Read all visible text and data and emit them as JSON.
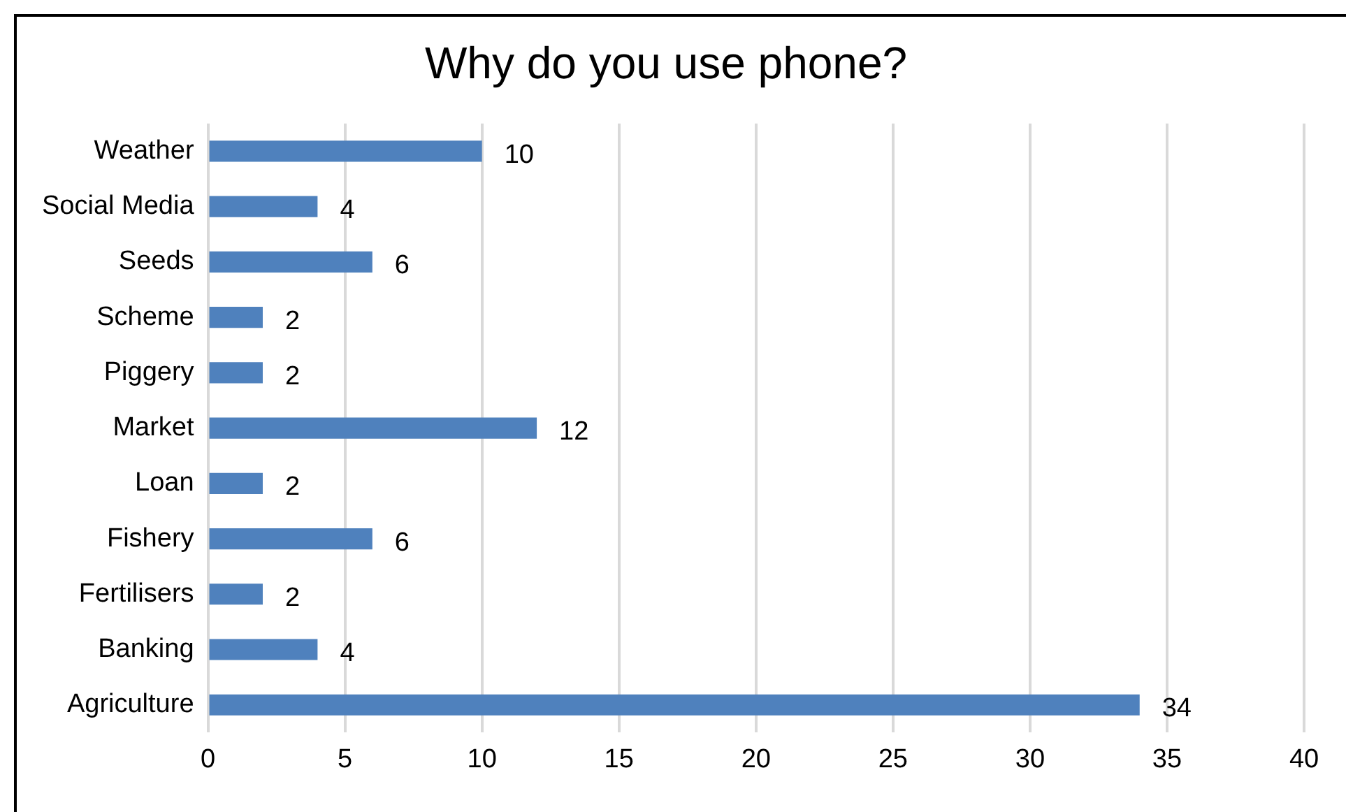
{
  "chart_data": {
    "type": "bar",
    "orientation": "horizontal",
    "title": "Why do you use phone?",
    "categories": [
      "Weather",
      "Social Media",
      "Seeds",
      "Scheme",
      "Piggery",
      "Market",
      "Loan",
      "Fishery",
      "Fertilisers",
      "Banking",
      "Agriculture"
    ],
    "values": [
      10,
      4,
      6,
      2,
      2,
      12,
      2,
      6,
      2,
      4,
      34
    ],
    "color": "#4f81bd",
    "xlim": [
      0,
      40
    ],
    "xticks": [
      0,
      5,
      10,
      15,
      20,
      25,
      30,
      35,
      40
    ],
    "grid": "x",
    "legend": false,
    "data_labels": true
  }
}
